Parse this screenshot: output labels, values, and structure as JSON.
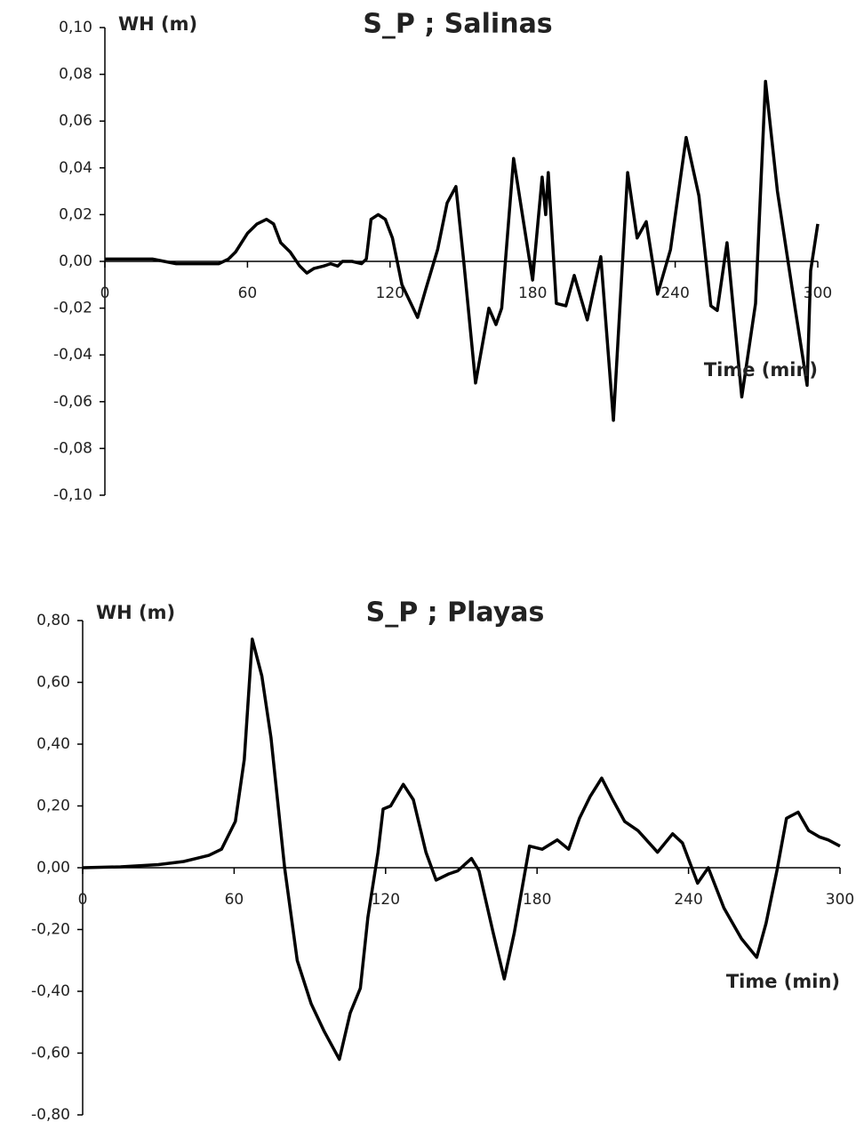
{
  "chart_data": [
    {
      "type": "line",
      "title": "S_P ; Salinas",
      "y_label": "WH (m)",
      "x_label": "Time (min)",
      "x": [
        0,
        10,
        20,
        25,
        30,
        40,
        48,
        52,
        55,
        60,
        64,
        68,
        71,
        74,
        78,
        82,
        85,
        88,
        92,
        95,
        98,
        100,
        104,
        108,
        110,
        112,
        115,
        118,
        121,
        125,
        131.6,
        135,
        140,
        144,
        147.7,
        151,
        156,
        161.6,
        164.6,
        167,
        172,
        176,
        180,
        184,
        185.5,
        186.6,
        190,
        194,
        197.5,
        203,
        208.7,
        214,
        220,
        224,
        227.8,
        232.6,
        238,
        244.6,
        250,
        255,
        257.7,
        261.8,
        268,
        273.8,
        278,
        283,
        290.6,
        295.5,
        297,
        300
      ],
      "series": [
        {
          "name": "S_P ; Salinas",
          "color": "#000000",
          "values": [
            0.001,
            0.001,
            0.001,
            0.0,
            -0.001,
            -0.001,
            -0.001,
            0.001,
            0.004,
            0.012,
            0.016,
            0.018,
            0.016,
            0.008,
            0.004,
            -0.002,
            -0.005,
            -0.003,
            -0.002,
            -0.001,
            -0.002,
            0.0,
            0.0,
            -0.001,
            0.001,
            0.018,
            0.02,
            0.018,
            0.01,
            -0.01,
            -0.024,
            -0.012,
            0.005,
            0.025,
            0.032,
            0.0,
            -0.052,
            -0.02,
            -0.027,
            -0.02,
            0.044,
            0.018,
            -0.008,
            0.036,
            0.02,
            0.038,
            -0.018,
            -0.019,
            -0.006,
            -0.025,
            0.002,
            -0.068,
            0.038,
            0.01,
            0.017,
            -0.014,
            0.005,
            0.053,
            0.028,
            -0.019,
            -0.021,
            0.008,
            -0.058,
            -0.018,
            0.077,
            0.03,
            -0.021,
            -0.053,
            -0.004,
            0.016
          ]
        }
      ],
      "xlim": [
        0,
        300
      ],
      "xticks": [
        0,
        60,
        120,
        180,
        240,
        300
      ],
      "ylim": [
        -0.1,
        0.1
      ],
      "yticks": [
        {
          "value": -0.1,
          "label": "-0,10"
        },
        {
          "value": -0.08,
          "label": "-0,08"
        },
        {
          "value": -0.06,
          "label": "-0,06"
        },
        {
          "value": -0.04,
          "label": "-0,04"
        },
        {
          "value": -0.02,
          "label": "-0,02"
        },
        {
          "value": 0,
          "label": "0,00"
        },
        {
          "value": 0.02,
          "label": "0,02"
        },
        {
          "value": 0.04,
          "label": "0,04"
        },
        {
          "value": 0.06,
          "label": "0,06"
        },
        {
          "value": 0.08,
          "label": "0,08"
        },
        {
          "value": 0.1,
          "label": "0,10"
        }
      ]
    },
    {
      "type": "line",
      "title": "S_P ; Playas",
      "y_label": "WH (m)",
      "x_label": "Time (min)",
      "x": [
        0,
        15,
        30,
        40,
        45,
        50,
        55,
        60.5,
        64,
        67.2,
        71,
        74.6,
        80,
        85,
        90.5,
        95.7,
        101.7,
        106,
        110,
        113,
        117,
        119,
        122,
        127,
        131,
        136,
        140,
        145,
        148.6,
        154,
        157,
        162.6,
        167,
        171,
        177,
        182,
        188,
        192.5,
        196.8,
        201,
        205.6,
        210,
        214.7,
        220,
        227.7,
        233.7,
        237.6,
        243.6,
        247.8,
        254,
        261,
        267,
        270.7,
        275,
        278.8,
        283.4,
        287.6,
        291.8,
        295.3,
        300
      ],
      "series": [
        {
          "name": "S_P ; Playas",
          "color": "#000000",
          "values": [
            0.0,
            0.003,
            0.01,
            0.02,
            0.03,
            0.04,
            0.06,
            0.15,
            0.35,
            0.74,
            0.62,
            0.42,
            0.0,
            -0.3,
            -0.44,
            -0.53,
            -0.62,
            -0.47,
            -0.39,
            -0.16,
            0.05,
            0.19,
            0.2,
            0.27,
            0.22,
            0.05,
            -0.04,
            -0.02,
            -0.01,
            0.03,
            -0.01,
            -0.21,
            -0.36,
            -0.21,
            0.07,
            0.06,
            0.09,
            0.06,
            0.16,
            0.23,
            0.29,
            0.22,
            0.15,
            0.12,
            0.05,
            0.11,
            0.08,
            -0.05,
            0.0,
            -0.13,
            -0.23,
            -0.29,
            -0.18,
            -0.01,
            0.16,
            0.18,
            0.12,
            0.1,
            0.09,
            0.07
          ]
        }
      ],
      "xlim": [
        0,
        300
      ],
      "xticks": [
        0,
        60,
        120,
        180,
        240,
        300
      ],
      "ylim": [
        -0.8,
        0.8
      ],
      "yticks": [
        {
          "value": -0.8,
          "label": "-0,80"
        },
        {
          "value": -0.6,
          "label": "-0,60"
        },
        {
          "value": -0.4,
          "label": "-0,40"
        },
        {
          "value": -0.2,
          "label": "-0,20"
        },
        {
          "value": 0,
          "label": "0,00"
        },
        {
          "value": 0.2,
          "label": "0,20"
        },
        {
          "value": 0.4,
          "label": "0,40"
        },
        {
          "value": 0.6,
          "label": "0,60"
        },
        {
          "value": 0.8,
          "label": "0,80"
        }
      ]
    }
  ]
}
